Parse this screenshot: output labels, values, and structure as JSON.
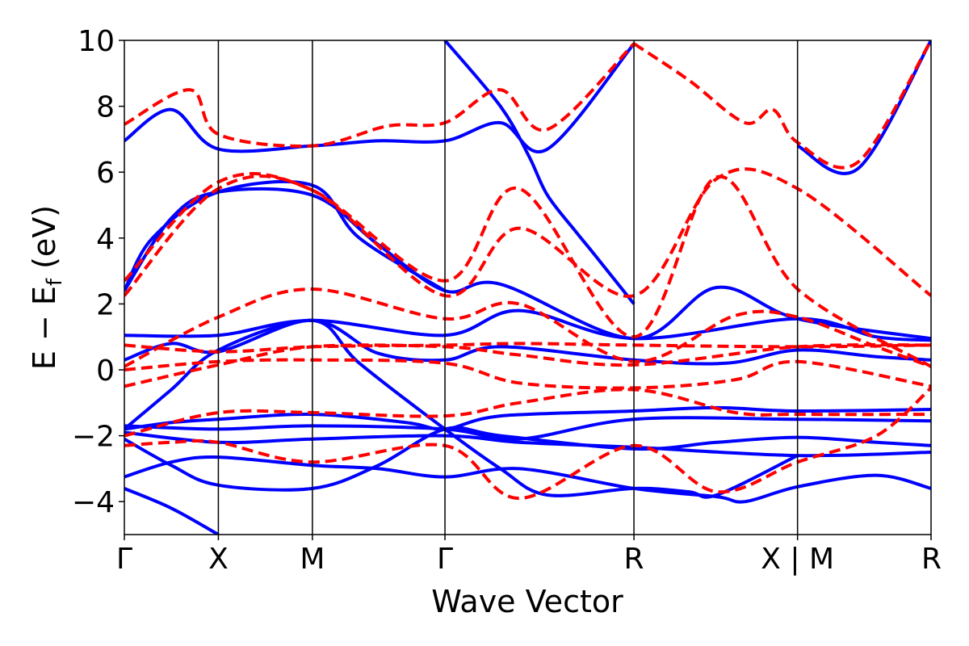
{
  "chart_data": {
    "type": "line",
    "xlabel": "Wave Vector",
    "ylabel_main": "E − E",
    "ylabel_sub": "f",
    "ylabel_suffix": " (eV)",
    "ylim": [
      -5,
      10
    ],
    "xlim": [
      0,
      8.58
    ],
    "yticks": [
      {
        "value": -4,
        "label": "−4"
      },
      {
        "value": -2,
        "label": "−2"
      },
      {
        "value": 0,
        "label": "0"
      },
      {
        "value": 2,
        "label": "2"
      },
      {
        "value": 4,
        "label": "4"
      },
      {
        "value": 6,
        "label": "6"
      },
      {
        "value": 8,
        "label": "8"
      },
      {
        "value": 10,
        "label": "10"
      }
    ],
    "high_symmetry_points": [
      {
        "x": 0.0,
        "label": "Γ"
      },
      {
        "x": 1.0,
        "label": "X"
      },
      {
        "x": 2.0,
        "label": "M"
      },
      {
        "x": 3.41,
        "label": "Γ"
      },
      {
        "x": 5.42,
        "label": "R"
      },
      {
        "x": 7.16,
        "label": "X | M"
      },
      {
        "x": 8.58,
        "label": "R"
      }
    ],
    "grid": false,
    "legend": "none",
    "series": [
      {
        "style": "solid",
        "color": "#0000ff",
        "bands": [
          [
            [
              0,
              -3.6
            ],
            [
              0.5,
              -4.2
            ],
            [
              1.0,
              -5.0
            ]
          ],
          [
            [
              0,
              -3.25
            ],
            [
              0.5,
              -2.8
            ],
            [
              1.0,
              -2.65
            ],
            [
              2.0,
              -2.9
            ],
            [
              2.7,
              -3.0
            ],
            [
              3.41,
              -3.25
            ],
            [
              4.2,
              -3.0
            ],
            [
              5.42,
              -3.6
            ],
            [
              6.3,
              -3.85
            ],
            [
              6.6,
              -4.0
            ],
            [
              7.16,
              -3.55
            ],
            [
              8.0,
              -3.2
            ],
            [
              8.58,
              -3.6
            ]
          ],
          [
            [
              0,
              -2.1
            ],
            [
              0.5,
              -2.9
            ],
            [
              1.0,
              -3.5
            ],
            [
              2.0,
              -3.6
            ],
            [
              2.7,
              -2.9
            ],
            [
              3.41,
              -1.8
            ],
            [
              4.0,
              -2.0
            ],
            [
              5.42,
              -2.4
            ],
            [
              6.3,
              -2.2
            ],
            [
              7.16,
              -2.05
            ],
            [
              8.0,
              -2.2
            ],
            [
              8.58,
              -2.3
            ]
          ],
          [
            [
              0,
              -1.8
            ],
            [
              0.5,
              -1.6
            ],
            [
              1.0,
              -1.5
            ],
            [
              2.0,
              -1.35
            ],
            [
              3.0,
              -1.6
            ],
            [
              3.41,
              -1.8
            ],
            [
              4.0,
              -1.4
            ],
            [
              5.42,
              -1.25
            ],
            [
              6.3,
              -1.15
            ],
            [
              7.16,
              -1.25
            ],
            [
              8.58,
              -1.2
            ]
          ],
          [
            [
              0,
              -1.7
            ],
            [
              1.0,
              -1.8
            ],
            [
              2.0,
              -1.7
            ],
            [
              3.41,
              -1.8
            ],
            [
              4.2,
              -2.1
            ],
            [
              5.42,
              -1.5
            ],
            [
              7.16,
              -1.5
            ],
            [
              8.58,
              -1.55
            ]
          ],
          [
            [
              0,
              -1.9
            ],
            [
              1.0,
              -2.2
            ],
            [
              2.0,
              -2.1
            ],
            [
              3.41,
              -2.0
            ],
            [
              4.2,
              -2.2
            ],
            [
              5.42,
              -2.35
            ],
            [
              7.16,
              -2.6
            ],
            [
              8.58,
              -2.5
            ]
          ],
          [
            [
              0,
              -1.8
            ],
            [
              0.5,
              -0.6
            ],
            [
              1.0,
              0.6
            ],
            [
              2.0,
              1.5
            ],
            [
              2.7,
              0.5
            ],
            [
              3.41,
              0.3
            ],
            [
              4.0,
              0.7
            ],
            [
              5.42,
              0.3
            ],
            [
              6.4,
              0.2
            ],
            [
              7.16,
              0.6
            ],
            [
              8.0,
              0.4
            ],
            [
              8.58,
              0.3
            ]
          ],
          [
            [
              0,
              0.3
            ],
            [
              0.5,
              0.8
            ],
            [
              1.0,
              0.55
            ],
            [
              2.0,
              1.5
            ],
            [
              2.5,
              0.2
            ],
            [
              3.41,
              -1.8
            ],
            [
              4.0,
              -3.0
            ],
            [
              4.5,
              -3.8
            ],
            [
              5.42,
              -3.6
            ],
            [
              6.0,
              -3.7
            ],
            [
              6.3,
              -3.8
            ],
            [
              7.16,
              -2.6
            ]
          ],
          [
            [
              0,
              1.05
            ],
            [
              1.0,
              1.05
            ],
            [
              2.0,
              1.5
            ],
            [
              3.41,
              1.05
            ],
            [
              4.2,
              1.8
            ],
            [
              5.42,
              0.95
            ],
            [
              7.16,
              1.55
            ],
            [
              8.0,
              1.0
            ],
            [
              8.58,
              0.9
            ]
          ],
          [
            [
              0,
              2.4
            ],
            [
              0.5,
              4.6
            ],
            [
              1.0,
              5.4
            ],
            [
              2.0,
              5.3
            ],
            [
              2.7,
              3.8
            ],
            [
              3.41,
              2.4
            ],
            [
              4.0,
              2.6
            ],
            [
              5.42,
              0.95
            ],
            [
              6.3,
              2.5
            ],
            [
              7.16,
              1.55
            ],
            [
              8.58,
              0.95
            ]
          ],
          [
            [
              0,
              6.95
            ],
            [
              0.5,
              7.9
            ],
            [
              1.0,
              6.7
            ],
            [
              2.0,
              6.8
            ],
            [
              2.7,
              6.95
            ],
            [
              3.41,
              6.95
            ],
            [
              4.0,
              7.5
            ],
            [
              4.5,
              6.7
            ],
            [
              5.42,
              9.9
            ]
          ],
          [
            [
              3.41,
              10.0
            ],
            [
              4.0,
              8.0
            ],
            [
              4.3,
              6.5
            ],
            [
              4.5,
              5.3
            ],
            [
              4.8,
              4.2
            ],
            [
              5.0,
              3.5
            ],
            [
              5.42,
              2.0
            ]
          ],
          [
            [
              0,
              2.4
            ],
            [
              0.3,
              4.0
            ],
            [
              1.0,
              5.4
            ],
            [
              2.0,
              5.6
            ],
            [
              2.5,
              4.0
            ],
            [
              3.41,
              2.4
            ]
          ],
          [
            [
              7.16,
              6.8
            ],
            [
              7.8,
              6.1
            ],
            [
              8.58,
              10.0
            ]
          ]
        ]
      },
      {
        "style": "dashed",
        "color": "#ff0000",
        "bands": [
          [
            [
              0,
              -2.3
            ],
            [
              0.5,
              -2.2
            ],
            [
              1.0,
              -2.2
            ],
            [
              2.0,
              -2.8
            ],
            [
              3.41,
              -2.3
            ],
            [
              4.2,
              -3.9
            ],
            [
              5.42,
              -2.3
            ],
            [
              6.3,
              -3.7
            ],
            [
              7.16,
              -2.8
            ],
            [
              8.0,
              -2.0
            ],
            [
              8.58,
              -0.55
            ]
          ],
          [
            [
              0,
              -2.0
            ],
            [
              1.0,
              -1.3
            ],
            [
              2.0,
              -1.3
            ],
            [
              3.41,
              -1.4
            ],
            [
              4.2,
              -1.0
            ],
            [
              5.42,
              -0.6
            ],
            [
              6.5,
              -1.3
            ],
            [
              7.16,
              -1.35
            ],
            [
              8.58,
              -1.35
            ]
          ],
          [
            [
              0,
              -0.5
            ],
            [
              1.0,
              0.15
            ],
            [
              2.0,
              0.7
            ],
            [
              3.41,
              0.7
            ],
            [
              4.2,
              0.45
            ],
            [
              5.42,
              0.15
            ],
            [
              7.16,
              0.7
            ],
            [
              8.58,
              0.75
            ]
          ],
          [
            [
              0,
              0.0
            ],
            [
              1.0,
              0.25
            ],
            [
              2.0,
              0.3
            ],
            [
              3.41,
              0.2
            ],
            [
              4.2,
              -0.4
            ],
            [
              5.42,
              -0.55
            ],
            [
              6.5,
              -0.3
            ],
            [
              7.16,
              0.25
            ],
            [
              8.58,
              -0.5
            ]
          ],
          [
            [
              0,
              0.75
            ],
            [
              1.0,
              0.55
            ],
            [
              2.0,
              0.7
            ],
            [
              3.41,
              0.75
            ],
            [
              4.2,
              0.8
            ],
            [
              5.42,
              0.75
            ],
            [
              7.16,
              0.7
            ],
            [
              8.58,
              0.75
            ]
          ],
          [
            [
              0,
              0.1
            ],
            [
              1.0,
              1.6
            ],
            [
              2.0,
              2.45
            ],
            [
              3.41,
              1.55
            ],
            [
              4.2,
              2.0
            ],
            [
              5.42,
              0.25
            ],
            [
              6.5,
              1.65
            ],
            [
              7.16,
              1.6
            ],
            [
              8.0,
              0.7
            ],
            [
              8.58,
              0.1
            ]
          ],
          [
            [
              0,
              2.25
            ],
            [
              1.0,
              5.5
            ],
            [
              2.0,
              5.45
            ],
            [
              3.41,
              2.25
            ],
            [
              4.2,
              4.3
            ],
            [
              5.42,
              2.25
            ],
            [
              6.3,
              5.8
            ],
            [
              7.16,
              5.5
            ],
            [
              8.58,
              2.25
            ]
          ],
          [
            [
              0,
              2.7
            ],
            [
              1.0,
              5.7
            ],
            [
              2.0,
              5.45
            ],
            [
              3.41,
              2.7
            ],
            [
              4.2,
              5.5
            ],
            [
              5.42,
              1.0
            ],
            [
              6.3,
              5.85
            ],
            [
              7.16,
              2.45
            ],
            [
              8.58,
              0.1
            ]
          ],
          [
            [
              0,
              7.45
            ],
            [
              0.7,
              8.5
            ],
            [
              1.0,
              7.15
            ],
            [
              2.0,
              6.8
            ],
            [
              2.8,
              7.4
            ],
            [
              3.41,
              7.5
            ],
            [
              4.0,
              8.5
            ],
            [
              4.5,
              7.3
            ],
            [
              5.42,
              9.9
            ]
          ],
          [
            [
              5.42,
              9.9
            ],
            [
              6.0,
              8.8
            ],
            [
              6.6,
              7.5
            ],
            [
              6.9,
              7.9
            ],
            [
              7.16,
              6.9
            ],
            [
              7.8,
              6.3
            ],
            [
              8.58,
              10.0
            ]
          ]
        ]
      }
    ]
  }
}
